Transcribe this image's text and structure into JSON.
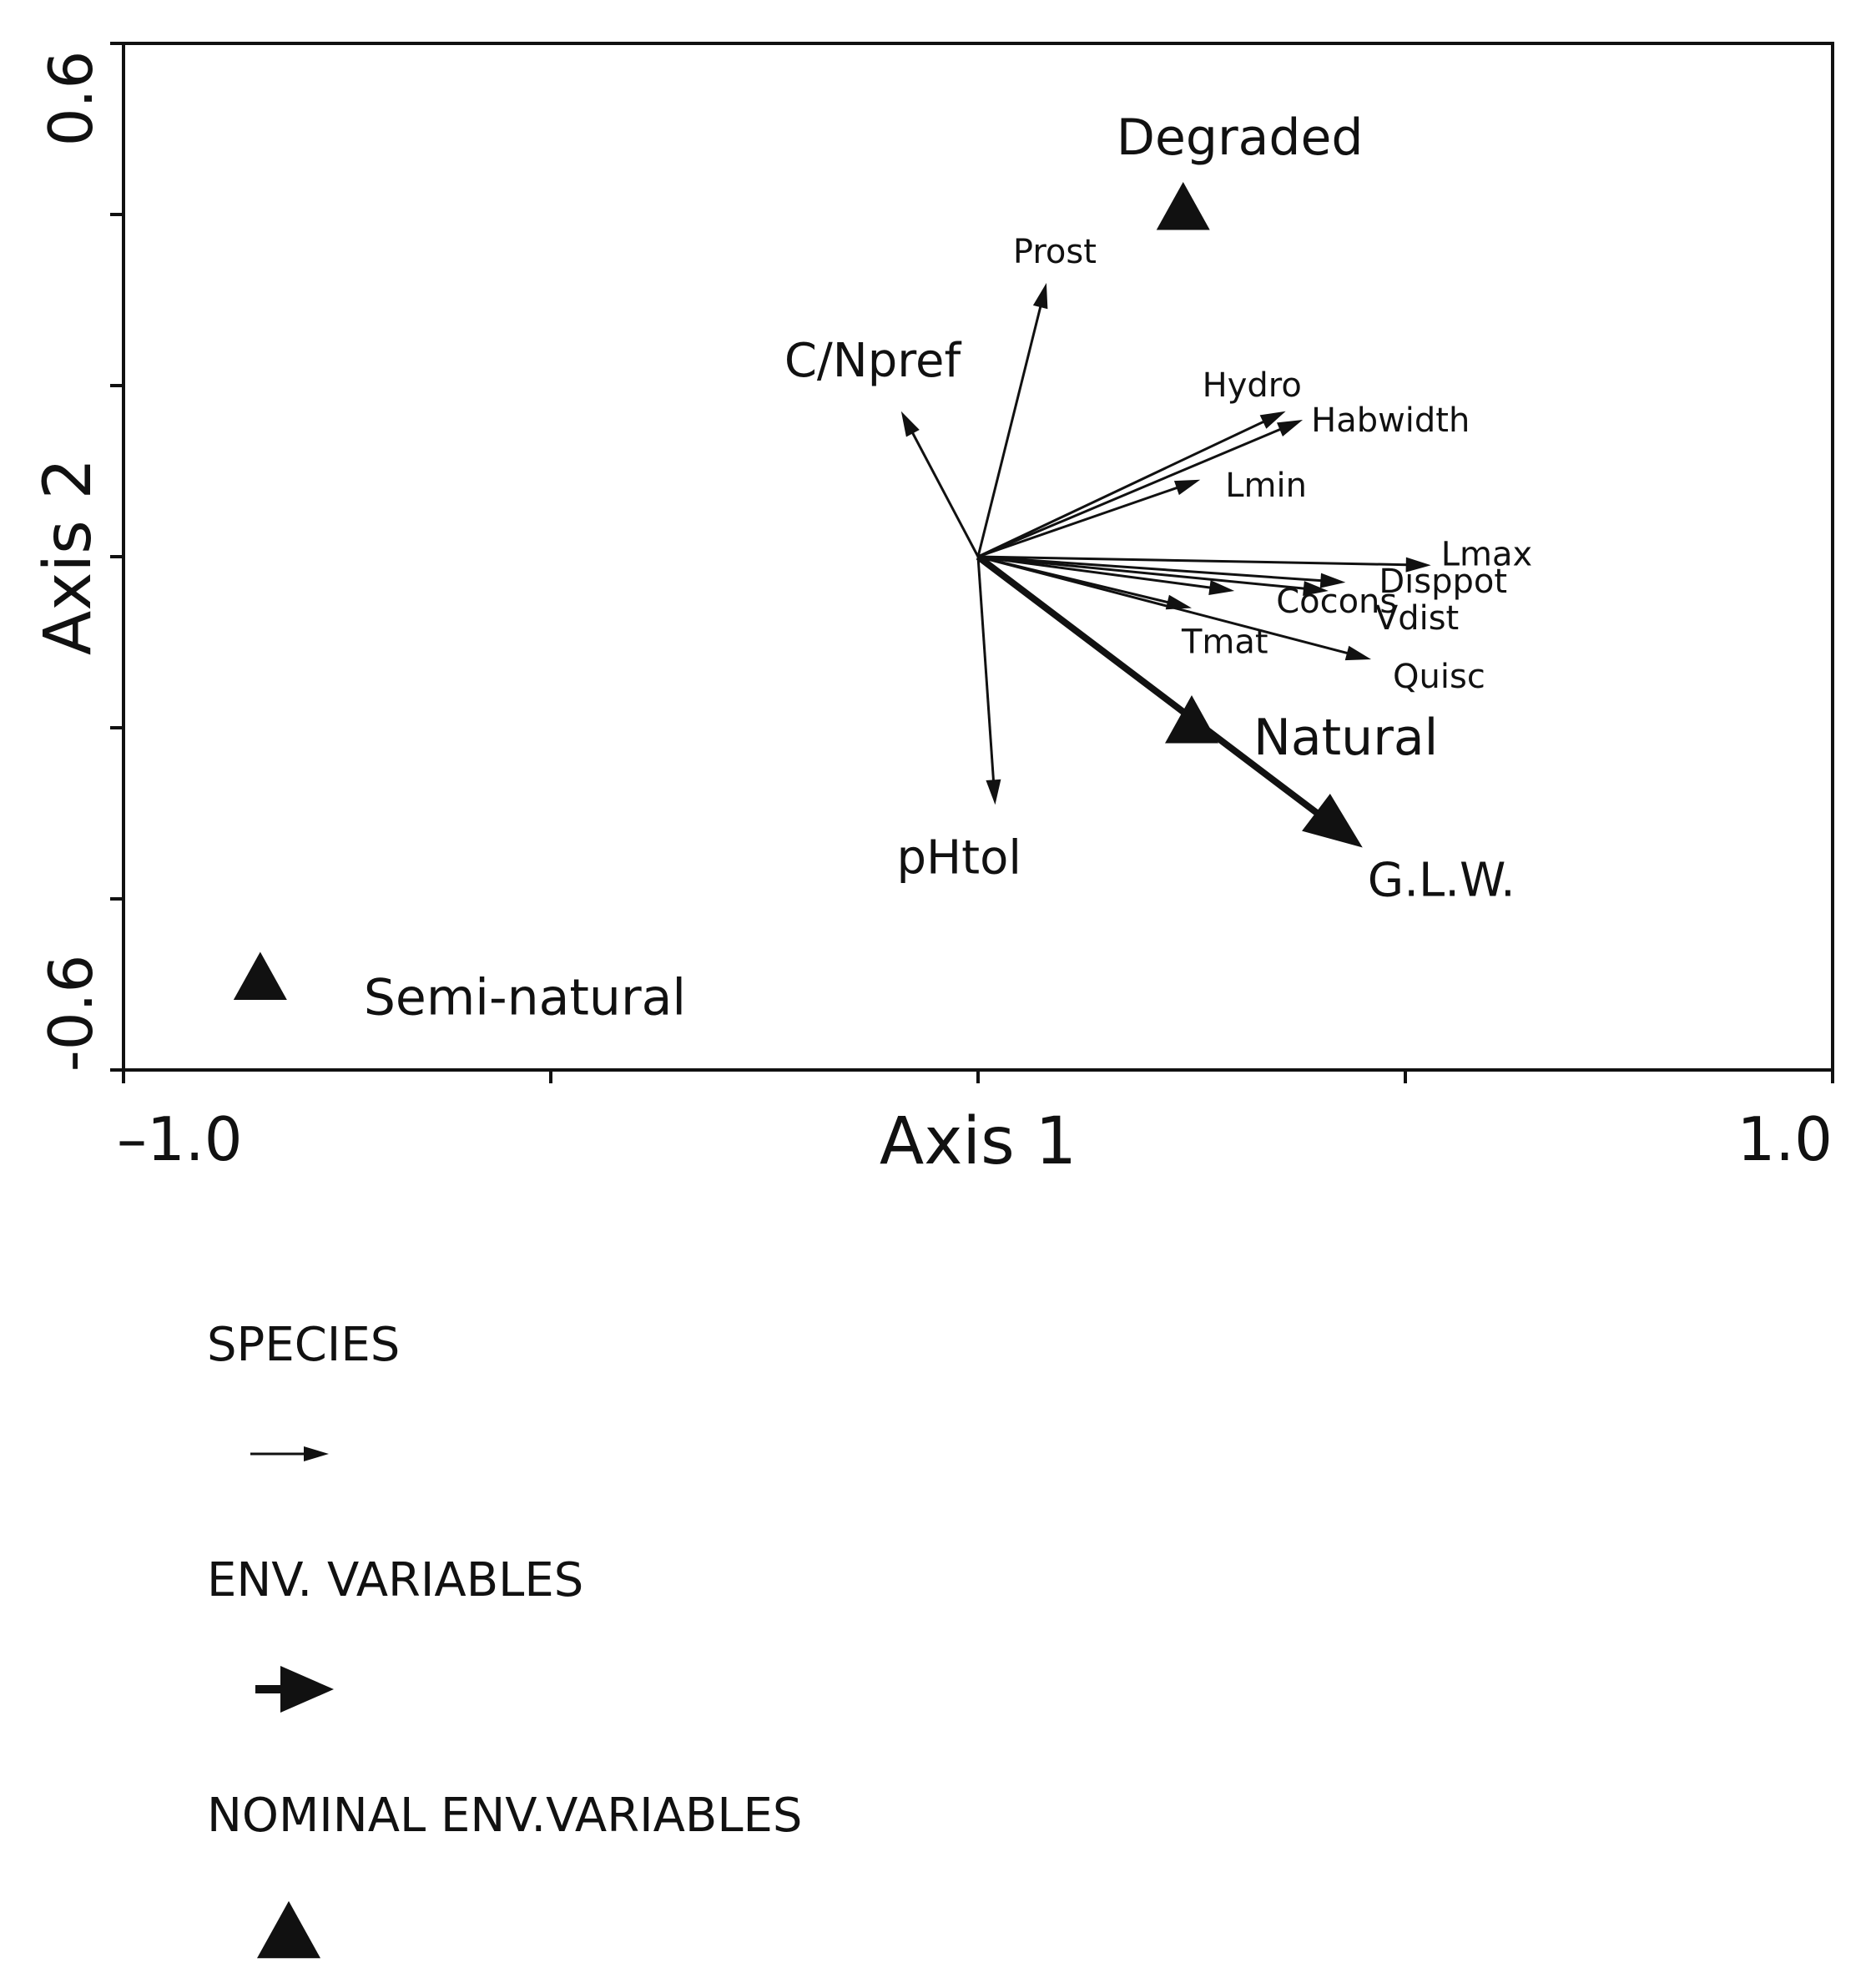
{
  "chart_data": {
    "type": "scatter",
    "subtype": "ordination-biplot",
    "xlabel": "Axis 1",
    "ylabel": "Axis 2",
    "xlim": [
      -1.0,
      1.0
    ],
    "ylim": [
      -0.6,
      0.6
    ],
    "x_tick_labels": [
      "–1.0",
      "1.0"
    ],
    "y_tick_labels": [
      "0.6",
      "-0.6"
    ],
    "x_ticks": [
      -1.0,
      -0.5,
      0.0,
      0.5,
      1.0
    ],
    "y_ticks": [
      -0.6,
      -0.4,
      -0.2,
      0.0,
      0.2,
      0.4,
      0.6
    ],
    "species": [
      {
        "name": "Prost",
        "x": 0.08,
        "y": 0.32
      },
      {
        "name": "C/Npref",
        "x": -0.09,
        "y": 0.17
      },
      {
        "name": "Hydro",
        "x": 0.36,
        "y": 0.17
      },
      {
        "name": "Habwidth",
        "x": 0.38,
        "y": 0.16
      },
      {
        "name": "Lmin",
        "x": 0.26,
        "y": 0.09
      },
      {
        "name": "Lmax",
        "x": 0.53,
        "y": -0.01
      },
      {
        "name": "Disppot",
        "x": 0.43,
        "y": -0.03
      },
      {
        "name": "Cocons",
        "x": 0.3,
        "y": -0.04
      },
      {
        "name": "Vdist",
        "x": 0.41,
        "y": -0.04
      },
      {
        "name": "Tmat",
        "x": 0.25,
        "y": -0.06
      },
      {
        "name": "Quisc",
        "x": 0.46,
        "y": -0.12
      },
      {
        "name": "pHtol",
        "x": 0.02,
        "y": -0.29
      }
    ],
    "env_variables": [
      {
        "name": "G.L.W.",
        "x": 0.45,
        "y": -0.34
      }
    ],
    "nominal_env_variables": [
      {
        "name": "Degraded",
        "x": 0.24,
        "y": 0.41
      },
      {
        "name": "Natural",
        "x": 0.25,
        "y": -0.19
      },
      {
        "name": "Semi-natural",
        "x": -0.84,
        "y": -0.49
      }
    ],
    "legend": {
      "placement": "bottom-left",
      "items": [
        {
          "label": "SPECIES",
          "symbol": "thin-arrow"
        },
        {
          "label": "ENV. VARIABLES",
          "symbol": "bold-arrow"
        },
        {
          "label": "NOMINAL ENV.VARIABLES",
          "symbol": "triangle"
        }
      ]
    }
  }
}
